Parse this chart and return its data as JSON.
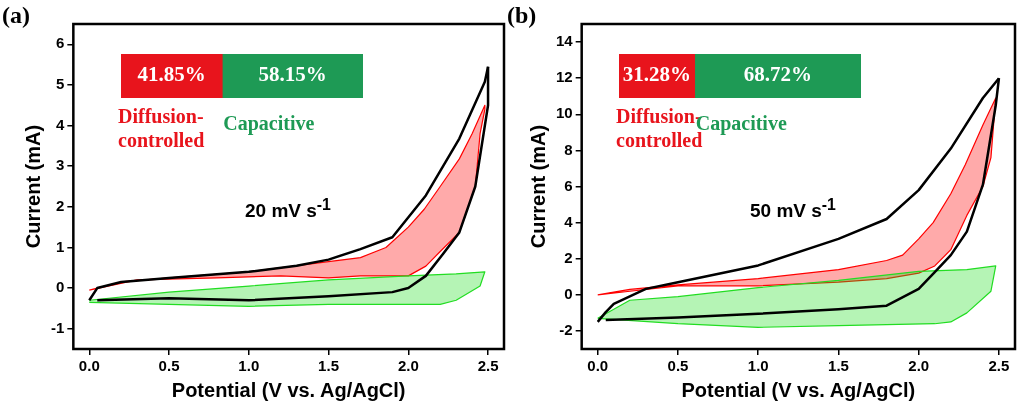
{
  "chart_data": [
    {
      "type": "line",
      "title": "(a)",
      "xlabel": "Potential (V vs. Ag/AgCl)",
      "ylabel": "Current (mA)",
      "xlim": [
        -0.1,
        2.6
      ],
      "ylim": [
        -1.5,
        6.5
      ],
      "xticks": [
        {
          "value": 0,
          "label": "0.0"
        },
        0.5,
        {
          "value": 1,
          "label": "1.0"
        },
        1.5,
        {
          "value": 2,
          "label": "2.0"
        },
        2.5
      ],
      "yticks": [
        -1,
        0,
        1,
        2,
        3,
        4,
        5,
        6
      ],
      "grid": false,
      "legend": false,
      "annotations": [
        "20 mV s$^{-1}$"
      ],
      "series": [
        {
          "type": "area",
          "color": "#ff0000",
          "x": [
            0,
            0.2,
            0.5,
            1.0,
            1.5,
            1.7,
            1.86,
            2.0,
            2.1,
            2.2,
            2.32,
            2.4,
            2.48,
            2.48,
            2.45,
            2.42,
            2.32,
            2.2,
            2.11,
            2.0,
            1.7,
            1.5,
            1.2,
            0.8,
            0.3,
            0
          ],
          "values": [
            -0.05,
            0.15,
            0.25,
            0.4,
            0.65,
            0.75,
            1.0,
            1.5,
            1.94,
            2.5,
            3.18,
            3.8,
            4.5,
            4.4,
            3.8,
            2.5,
            1.37,
            0.9,
            0.54,
            0.3,
            0.3,
            0.25,
            0.3,
            0.25,
            0.2,
            -0.05
          ]
        },
        {
          "type": "area",
          "color": "#22dd22",
          "x": [
            0,
            0.5,
            1.0,
            1.5,
            2.0,
            2.3,
            2.48,
            2.45,
            2.3,
            2.2,
            1.5,
            1.0,
            0.5,
            0
          ],
          "values": [
            -0.3,
            -0.1,
            0.05,
            0.2,
            0.3,
            0.35,
            0.4,
            0.05,
            -0.3,
            -0.4,
            -0.4,
            -0.45,
            -0.4,
            -0.35
          ]
        },
        {
          "type": "line",
          "color": "#000000",
          "x": [
            0,
            0.05,
            0.2,
            0.5,
            1.0,
            1.3,
            1.5,
            1.7,
            1.9,
            2.11,
            2.32,
            2.48,
            2.5
          ],
          "values": [
            -0.3,
            0,
            0.15,
            0.25,
            0.4,
            0.55,
            0.7,
            0.96,
            1.25,
            2.28,
            3.68,
            5.08,
            5.45
          ]
        },
        {
          "type": "line",
          "color": "#000000",
          "x": [
            0.05,
            0.5,
            1.0,
            1.5,
            1.9,
            2.0,
            2.11,
            2.21,
            2.32,
            2.42,
            2.5,
            2.5
          ],
          "values": [
            -0.3,
            -0.25,
            -0.3,
            -0.2,
            -0.1,
            0,
            0.3,
            0.8,
            1.37,
            2.5,
            4.5,
            5.45
          ]
        }
      ]
    },
    {
      "type": "bar",
      "orientation": "horizontal",
      "stacked": true,
      "categories": [
        null
      ],
      "legend": "bottom",
      "series": [
        {
          "name": "Diffusion-controlled",
          "color": "#e8141c",
          "values": [
            41.85
          ],
          "value_labels": [
            "41.85%"
          ]
        },
        {
          "name": "Capacitive",
          "color": "#1e9a55",
          "values": [
            58.15
          ],
          "value_labels": [
            "58.15%"
          ]
        }
      ]
    },
    {
      "type": "line",
      "title": "(b)",
      "xlabel": "Potential (V vs. Ag/AgCl)",
      "ylabel": "Current (mA)",
      "xlim": [
        -0.1,
        2.6
      ],
      "ylim": [
        -3,
        15
      ],
      "xticks": [
        {
          "value": 0,
          "label": "0.0"
        },
        0.5,
        {
          "value": 1,
          "label": "1.0"
        },
        1.5,
        {
          "value": 2,
          "label": "2.0"
        },
        2.5
      ],
      "yticks": [
        -2,
        0,
        2,
        4,
        6,
        8,
        10,
        12,
        14
      ],
      "grid": false,
      "legend": false,
      "annotations": [
        "50 mV s$^{-1}$"
      ],
      "series": [
        {
          "type": "area",
          "color": "#ff0000",
          "x": [
            0,
            0.2,
            0.5,
            1.0,
            1.5,
            1.8,
            1.9,
            2.0,
            2.09,
            2.2,
            2.29,
            2.4,
            2.48,
            2.45,
            2.4,
            2.3,
            2.2,
            2.1,
            2.0,
            1.8,
            1.5,
            1.0,
            0.5,
            0.2,
            0
          ],
          "values": [
            0,
            0.3,
            0.55,
            0.9,
            1.4,
            1.9,
            2.2,
            3.1,
            4.0,
            5.6,
            7.2,
            9.4,
            10.9,
            7.6,
            6.0,
            4.4,
            2.5,
            1.6,
            1.2,
            0.9,
            0.7,
            0.5,
            0.5,
            0.2,
            0
          ]
        },
        {
          "type": "area",
          "color": "#22dd22",
          "x": [
            0,
            0.2,
            0.5,
            1.0,
            1.5,
            2.0,
            2.3,
            2.48,
            2.45,
            2.3,
            2.2,
            2.1,
            1.5,
            1.0,
            0.5,
            0
          ],
          "values": [
            -1.3,
            -0.3,
            -0.1,
            0.4,
            0.8,
            1.3,
            1.4,
            1.6,
            0.2,
            -1.0,
            -1.5,
            -1.6,
            -1.7,
            -1.8,
            -1.6,
            -1.3
          ]
        },
        {
          "type": "line",
          "color": "#000000",
          "x": [
            0,
            0.05,
            0.1,
            0.3,
            0.5,
            1.0,
            1.5,
            1.8,
            2.0,
            2.2,
            2.4,
            2.5
          ],
          "values": [
            -1.5,
            -0.96,
            -0.5,
            0.33,
            0.7,
            1.63,
            3.1,
            4.2,
            5.8,
            8.1,
            10.9,
            12
          ]
        },
        {
          "type": "line",
          "color": "#000000",
          "x": [
            0.05,
            0.5,
            1.0,
            1.5,
            1.8,
            2.0,
            2.1,
            2.2,
            2.3,
            2.4,
            2.48,
            2.5
          ],
          "values": [
            -1.4,
            -1.25,
            -1.05,
            -0.8,
            -0.6,
            0.33,
            1.26,
            2.2,
            3.5,
            6.1,
            10.5,
            12
          ]
        }
      ]
    },
    {
      "type": "bar",
      "orientation": "horizontal",
      "stacked": true,
      "categories": [
        null
      ],
      "legend": "bottom",
      "series": [
        {
          "name": "Diffusion-controlled",
          "color": "#e8141c",
          "values": [
            31.28
          ],
          "value_labels": [
            "31.28%"
          ]
        },
        {
          "name": "Capacitive",
          "color": "#1e9a55",
          "values": [
            68.72
          ],
          "value_labels": [
            "68.72%"
          ]
        }
      ]
    }
  ]
}
